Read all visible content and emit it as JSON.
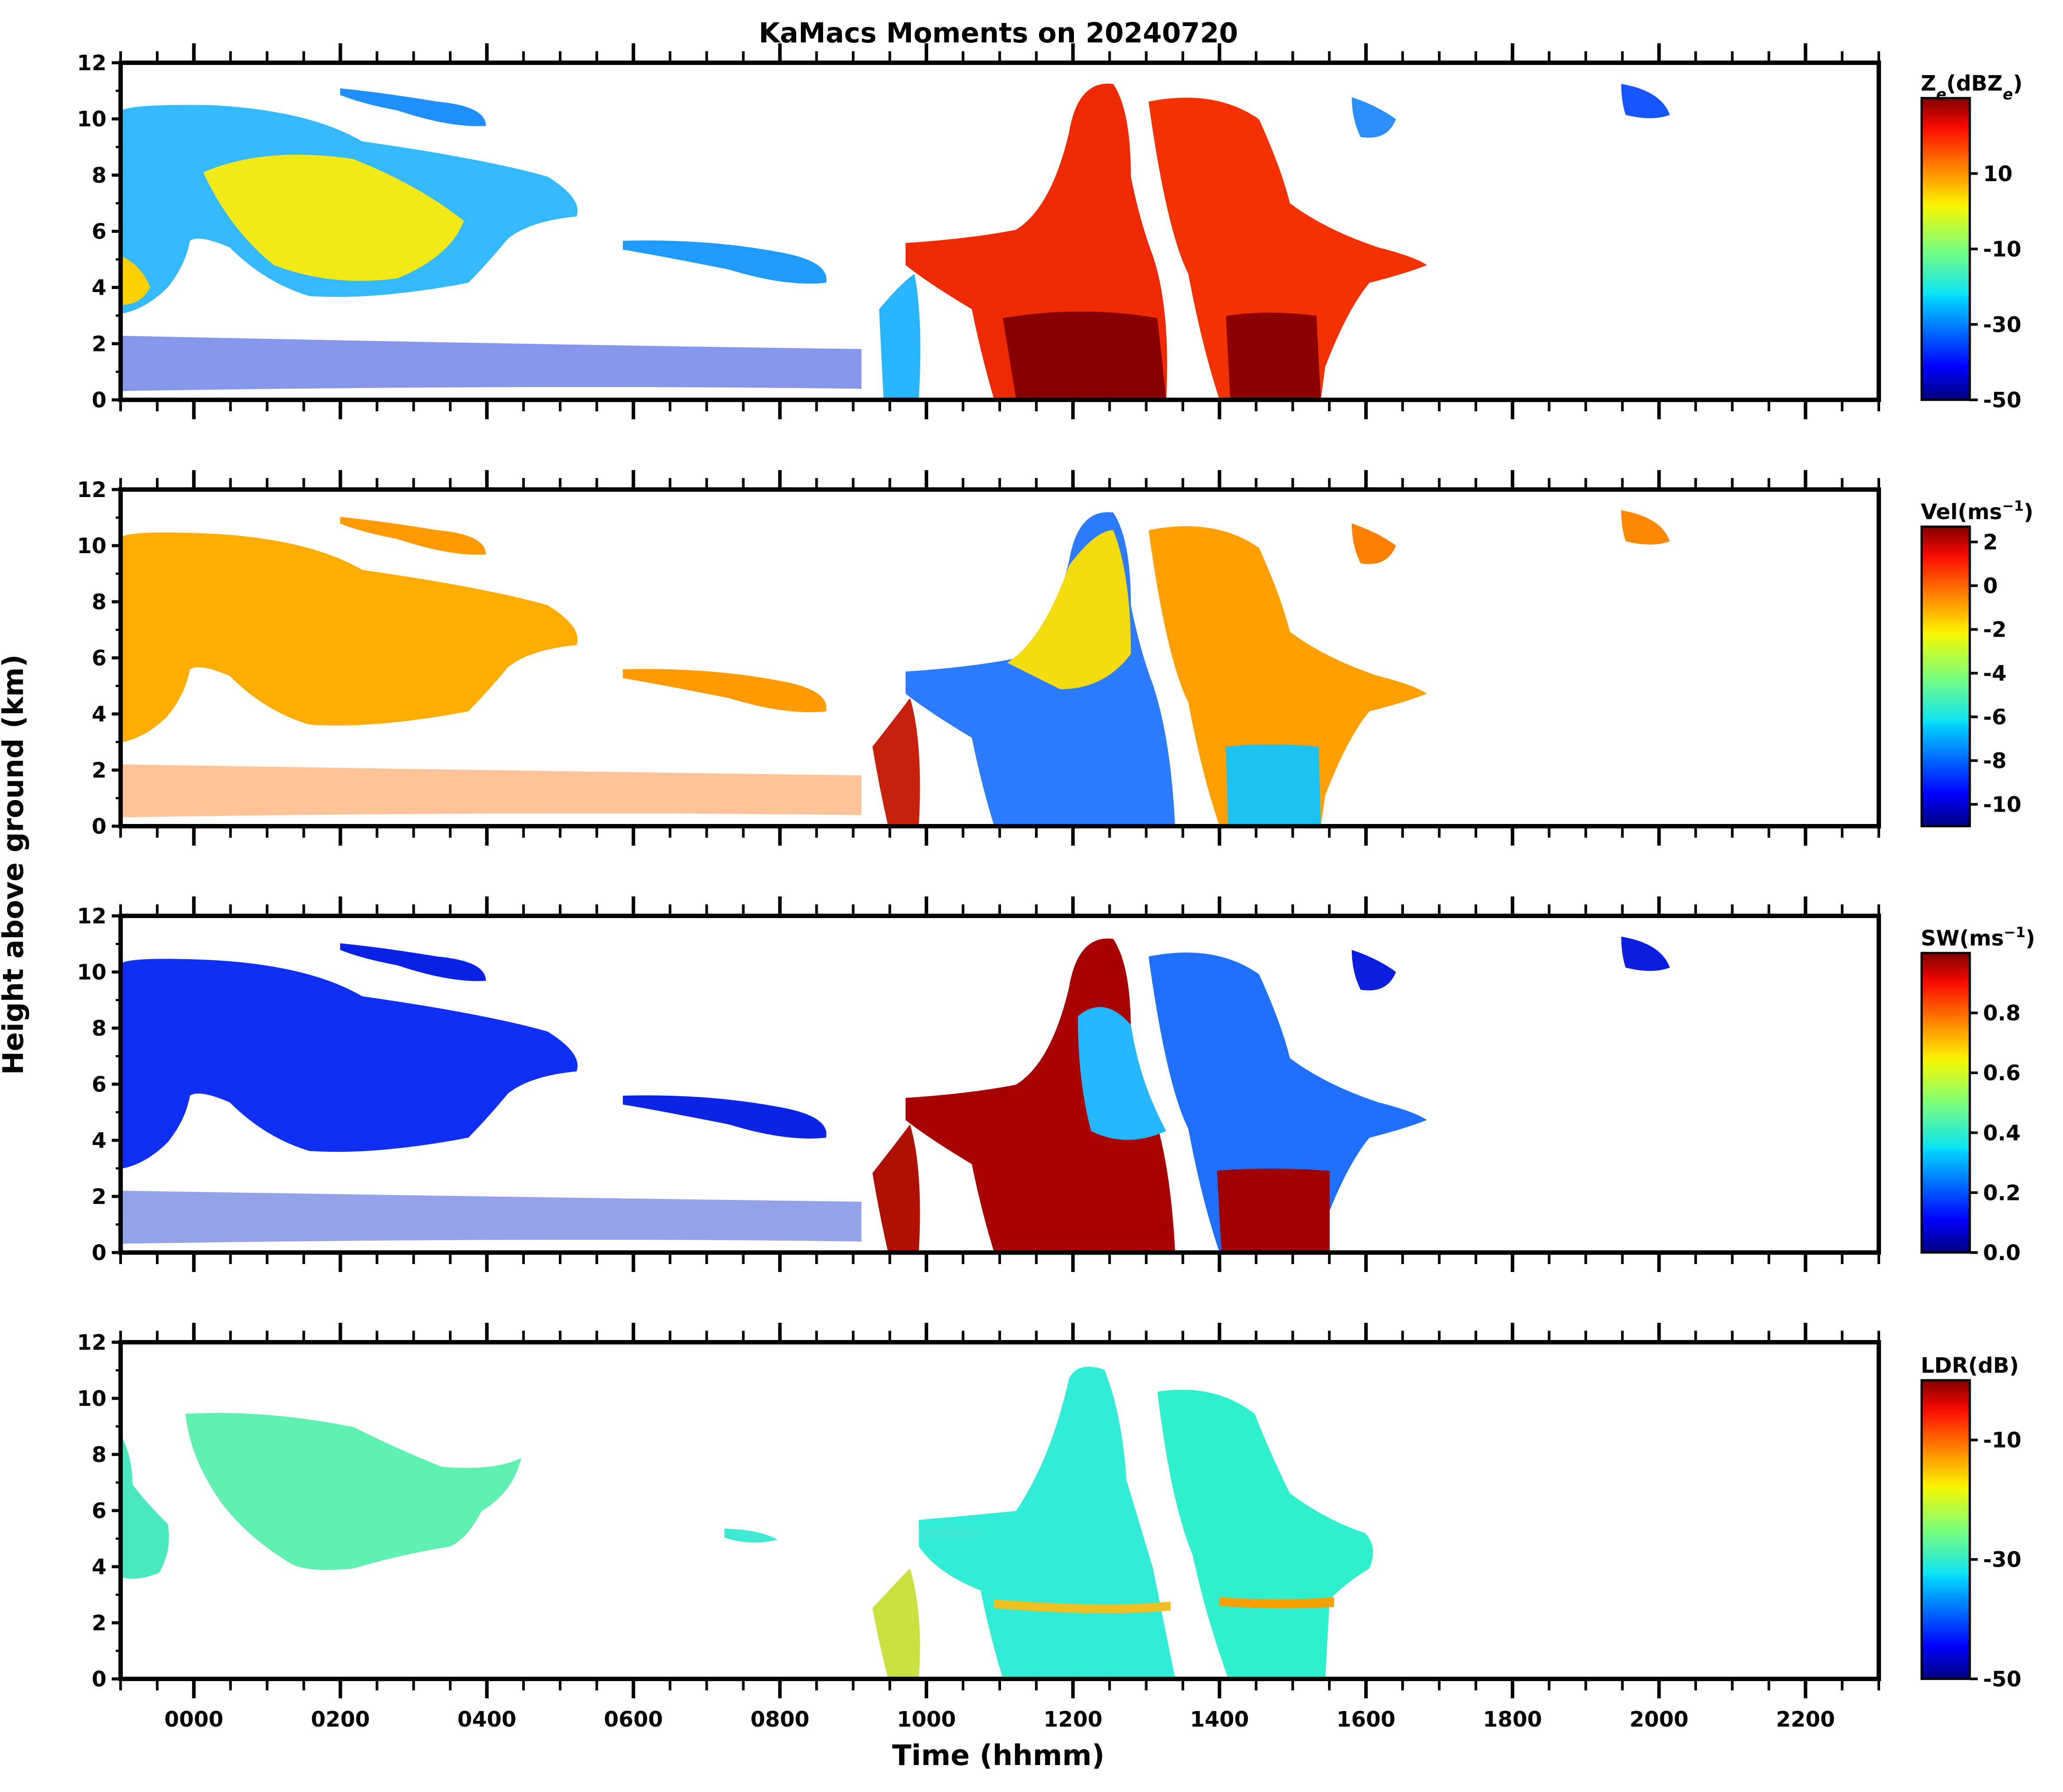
{
  "title": "KaMacs Moments on 20240720",
  "shared_ylabel": "Height above ground (km)",
  "xlabel": "Time (hhmm)",
  "x_ticks": [
    "0000",
    "0200",
    "0400",
    "0600",
    "0800",
    "1000",
    "1200",
    "1400",
    "1600",
    "1800",
    "2000",
    "2200"
  ],
  "y_ticks": [
    "0",
    "2",
    "4",
    "6",
    "8",
    "10",
    "12"
  ],
  "chart_data": [
    {
      "type": "heatmap",
      "variable": "Reflectivity",
      "colorbar_label_main": "Z",
      "colorbar_label_sub": "e",
      "colorbar_label_unit": "(dBZ",
      "colorbar_label_unit_sub": "e",
      "colorbar_label_close": ")",
      "colorbar_ticks": [
        "10",
        "-10",
        "-30",
        "-50"
      ],
      "colorbar_tick_values": [
        10,
        -10,
        -30,
        -50
      ],
      "colorbar_range": [
        -50,
        30
      ],
      "colormap": "jet",
      "x_range_hours": [
        -1,
        23
      ],
      "ylim": [
        0,
        12
      ]
    },
    {
      "type": "heatmap",
      "variable": "Doppler velocity",
      "colorbar_label_main": "Vel(ms",
      "colorbar_label_sup": "−1",
      "colorbar_label_close": ")",
      "colorbar_ticks": [
        "2",
        "0",
        "-2",
        "-4",
        "-6",
        "-8",
        "-10"
      ],
      "colorbar_tick_values": [
        2,
        0,
        -2,
        -4,
        -6,
        -8,
        -10
      ],
      "colorbar_range": [
        -11,
        2.7
      ],
      "colormap": "jet",
      "x_range_hours": [
        -1,
        23
      ],
      "ylim": [
        0,
        12
      ]
    },
    {
      "type": "heatmap",
      "variable": "Spectrum width",
      "colorbar_label_main": "SW(ms",
      "colorbar_label_sup": "−1",
      "colorbar_label_close": ")",
      "colorbar_ticks": [
        "0.8",
        "0.6",
        "0.4",
        "0.2",
        "0.0"
      ],
      "colorbar_tick_values": [
        0.8,
        0.6,
        0.4,
        0.2,
        0.0
      ],
      "colorbar_range": [
        0,
        1.0
      ],
      "colormap": "jet",
      "x_range_hours": [
        -1,
        23
      ],
      "ylim": [
        0,
        12
      ]
    },
    {
      "type": "heatmap",
      "variable": "Linear depolarization ratio",
      "colorbar_label_main": "LDR(dB)",
      "colorbar_ticks": [
        "-10",
        "-30",
        "-50"
      ],
      "colorbar_tick_values": [
        -10,
        -30,
        -50
      ],
      "colorbar_range": [
        -50,
        0
      ],
      "colormap": "jet",
      "x_range_hours": [
        -1,
        23
      ],
      "ylim": [
        0,
        12
      ]
    }
  ]
}
